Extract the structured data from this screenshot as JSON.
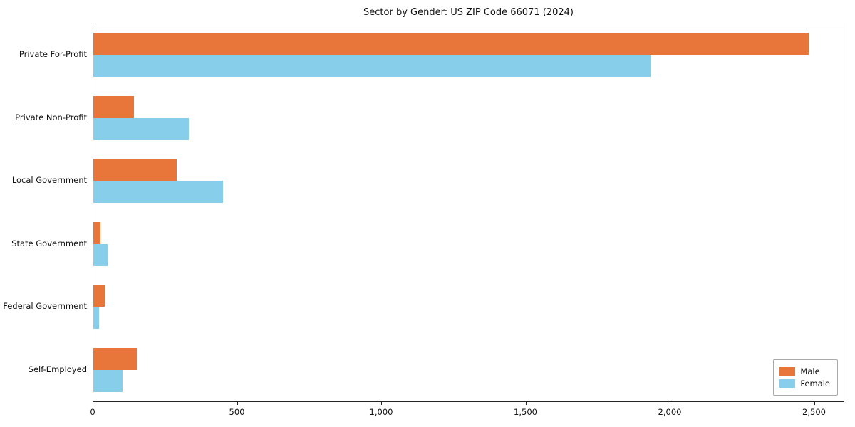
{
  "chart_data": {
    "type": "bar",
    "orientation": "horizontal",
    "title": "Sector by Gender: US ZIP Code 66071 (2024)",
    "categories": [
      "Private For-Profit",
      "Private Non-Profit",
      "Local Government",
      "State Government",
      "Federal Government",
      "Self-Employed"
    ],
    "series": [
      {
        "name": "Male",
        "color": "#e8763a",
        "values": [
          2480,
          140,
          290,
          25,
          40,
          150
        ]
      },
      {
        "name": "Female",
        "color": "#87ceeb",
        "values": [
          1930,
          330,
          450,
          50,
          20,
          100
        ]
      }
    ],
    "xlim": [
      0,
      2600
    ],
    "x_ticks": [
      0,
      500,
      1000,
      1500,
      2000,
      2500
    ],
    "x_tick_labels": [
      "0",
      "500",
      "1,000",
      "1,500",
      "2,000",
      "2,500"
    ],
    "ylabel": "",
    "xlabel": "",
    "grid": false,
    "legend_position": "lower right"
  }
}
